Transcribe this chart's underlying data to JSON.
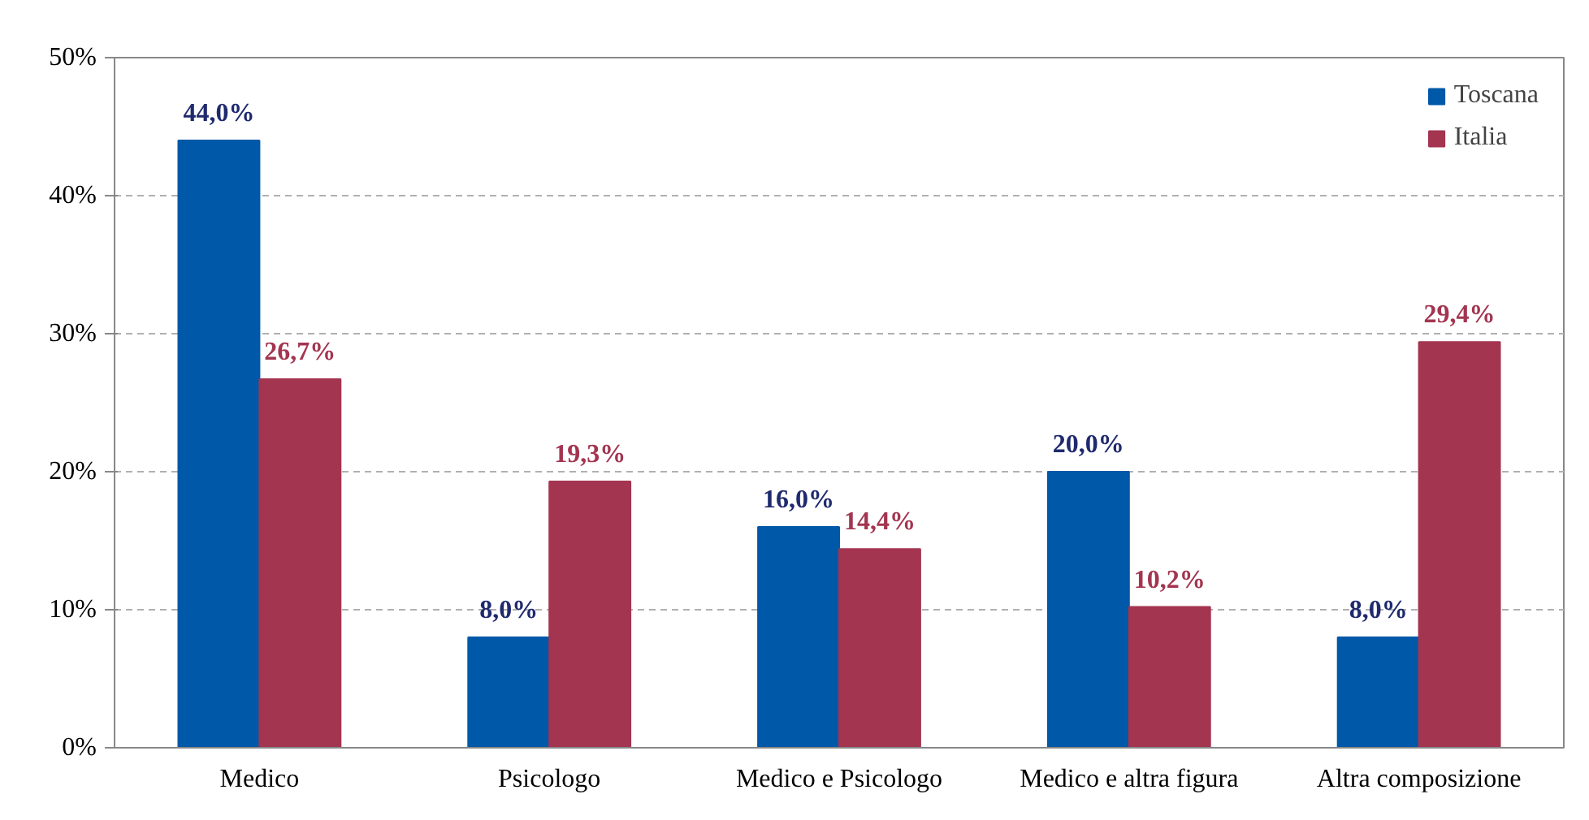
{
  "chart_data": {
    "type": "bar",
    "categories": [
      "Medico",
      "Psicologo",
      "Medico e Psicologo",
      "Medico e altra figura",
      "Altra composizione"
    ],
    "series": [
      {
        "name": "Toscana",
        "color": "#0058a8",
        "values": [
          44.0,
          8.0,
          16.0,
          20.0,
          8.0
        ],
        "value_labels": [
          "44,0%",
          "8,0%",
          "16,0%",
          "20,0%",
          "8,0%"
        ]
      },
      {
        "name": "Italia",
        "color": "#a33550",
        "values": [
          26.7,
          19.3,
          14.4,
          10.2,
          29.4
        ],
        "value_labels": [
          "26,7%",
          "19,3%",
          "14,4%",
          "10,2%",
          "29,4%"
        ]
      }
    ],
    "ylim": [
      0,
      50
    ],
    "yticks": [
      {
        "value": 0,
        "label": "0%"
      },
      {
        "value": 10,
        "label": "10%"
      },
      {
        "value": 20,
        "label": "20%"
      },
      {
        "value": 30,
        "label": "30%"
      },
      {
        "value": 40,
        "label": "40%"
      },
      {
        "value": 50,
        "label": "50%"
      }
    ],
    "grid": "y",
    "legend": "top right"
  }
}
